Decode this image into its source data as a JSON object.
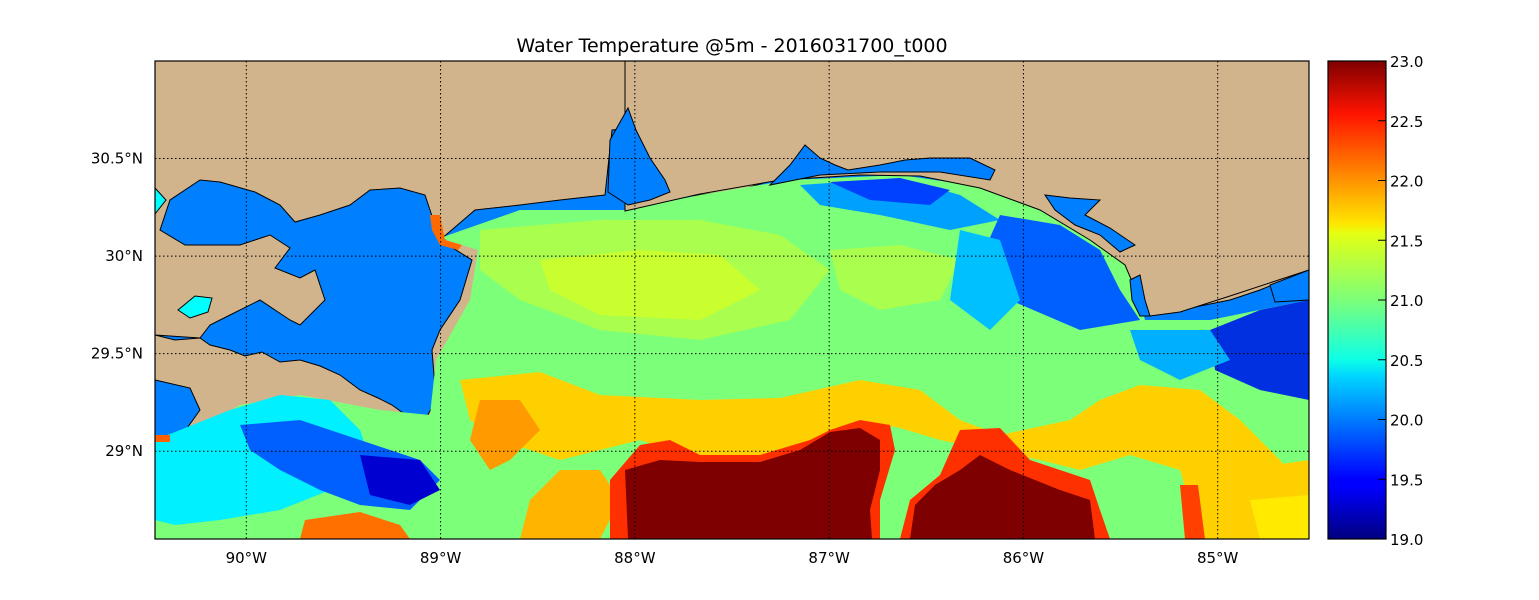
{
  "title": "Water Temperature @5m - 2016031700_t000",
  "map": {
    "lon_ticks": [
      "90°W",
      "89°W",
      "88°W",
      "87°W",
      "86°W",
      "85°W"
    ],
    "lat_ticks": [
      "30.5°N",
      "30°N",
      "29.5°N",
      "29°N"
    ],
    "lon_values": [
      -90,
      -89,
      -88,
      -87,
      -86,
      -85
    ],
    "lat_values": [
      30.5,
      30.0,
      29.5,
      29.0
    ],
    "lon_range": [
      -90.47,
      -84.53
    ],
    "lat_range": [
      28.55,
      31.0
    ],
    "grid": true,
    "colors": {
      "land": "#d2b48c",
      "inland_water": "#0080ff",
      "lake": "#00ffff"
    }
  },
  "colorbar": {
    "min": 19.0,
    "max": 23.0,
    "colormap": "jet",
    "ticks": [
      "23.0",
      "22.5",
      "22.0",
      "21.5",
      "21.0",
      "20.5",
      "20.0",
      "19.5",
      "19.0"
    ]
  }
}
